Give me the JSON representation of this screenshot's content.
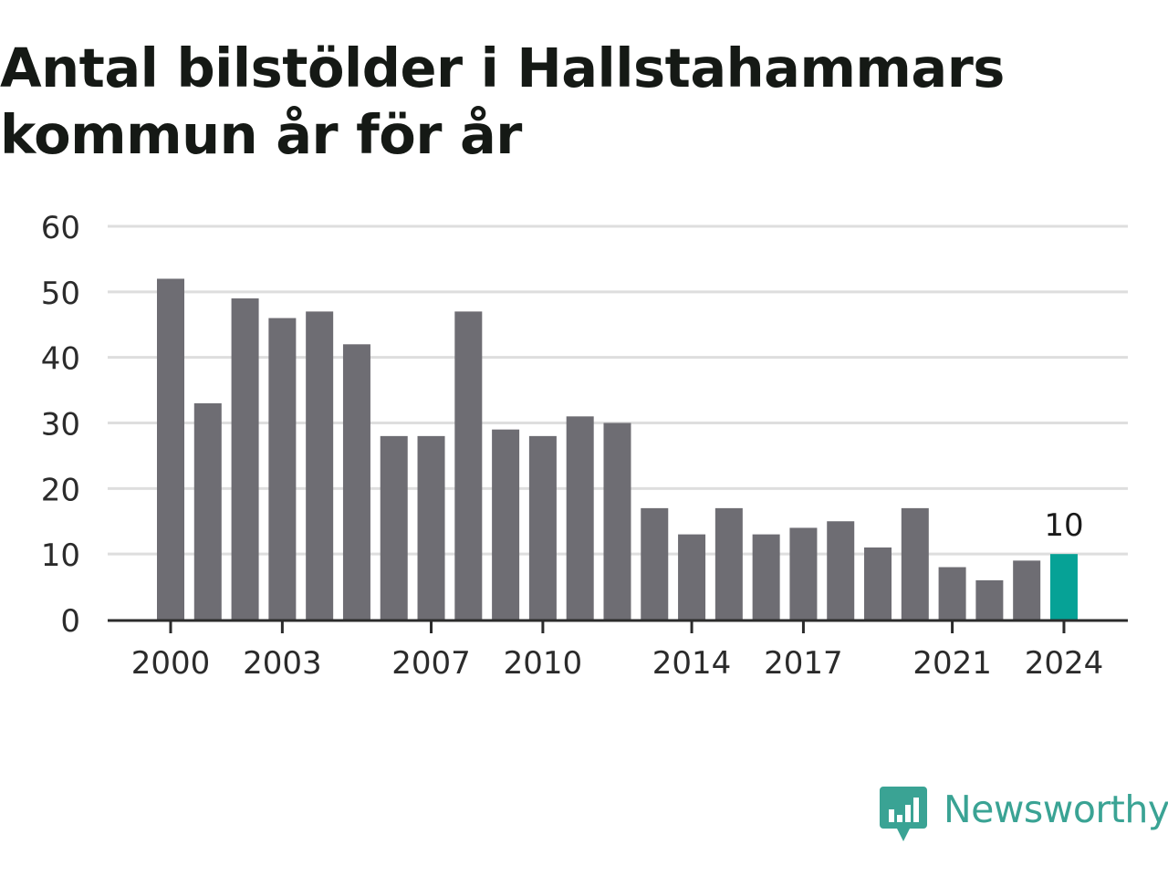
{
  "chart_data": {
    "type": "bar",
    "title": "Antal bilstölder i Hallstahammars kommun år för år",
    "categories": [
      "2000",
      "2001",
      "2002",
      "2003",
      "2004",
      "2005",
      "2006",
      "2007",
      "2008",
      "2009",
      "2010",
      "2011",
      "2012",
      "2013",
      "2014",
      "2015",
      "2016",
      "2017",
      "2018",
      "2019",
      "2020",
      "2021",
      "2022",
      "2023",
      "2024"
    ],
    "values": [
      52,
      33,
      49,
      46,
      47,
      42,
      28,
      28,
      47,
      29,
      28,
      31,
      30,
      17,
      13,
      17,
      13,
      14,
      15,
      11,
      17,
      8,
      6,
      9,
      10
    ],
    "x_tick_labels": [
      "2000",
      "2003",
      "2007",
      "2010",
      "2014",
      "2017",
      "2021",
      "2024"
    ],
    "y_ticks": [
      0,
      10,
      20,
      30,
      40,
      50,
      60
    ],
    "ylim": [
      0,
      60
    ],
    "xlabel": "",
    "ylabel": "",
    "highlight_category": "2024",
    "highlight_label": "10",
    "grid": true,
    "colors": {
      "bar": "#6e6d73",
      "highlight": "#06a296",
      "grid": "#dedede",
      "axis": "#2b2b2b",
      "tick_text": "#2b2b2b"
    }
  },
  "brand": {
    "name": "Newsworthy",
    "icon": "newsworthy-logo-icon",
    "color": "#3aa394"
  }
}
